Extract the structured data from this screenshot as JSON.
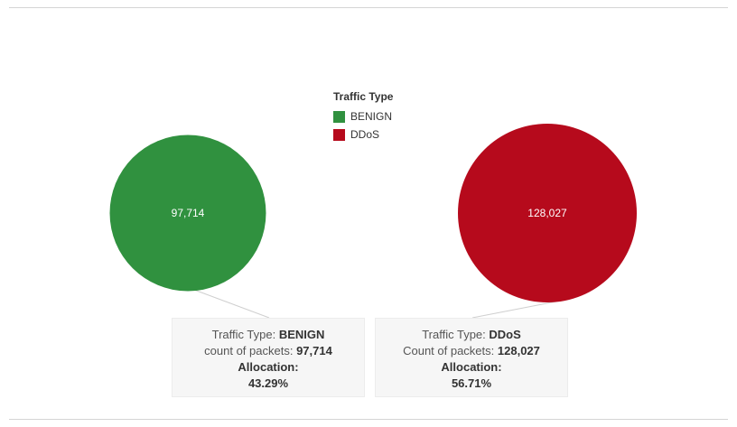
{
  "chart_data": {
    "type": "pie",
    "legend": {
      "title": "Traffic Type",
      "items": [
        {
          "label": "BENIGN",
          "color": "#30913f"
        },
        {
          "label": "DDoS",
          "color": "#b60a1c"
        }
      ]
    },
    "slices": [
      {
        "category": "BENIGN",
        "value": 97714,
        "value_label": "97,714",
        "color": "#30913f"
      },
      {
        "category": "DDoS",
        "value": 128027,
        "value_label": "128,027",
        "color": "#b60a1c"
      }
    ]
  },
  "tooltips": [
    {
      "type_label": "Traffic Type:",
      "type_value": "BENIGN",
      "count_label": "count of packets:",
      "count_value": "97,714",
      "allocation_label": "Allocation:",
      "allocation_value": "43.29%"
    },
    {
      "type_label": "Traffic Type:",
      "type_value": "DDoS",
      "count_label": "Count of packets:",
      "count_value": "128,027",
      "allocation_label": "Allocation:",
      "allocation_value": "56.71%"
    }
  ]
}
